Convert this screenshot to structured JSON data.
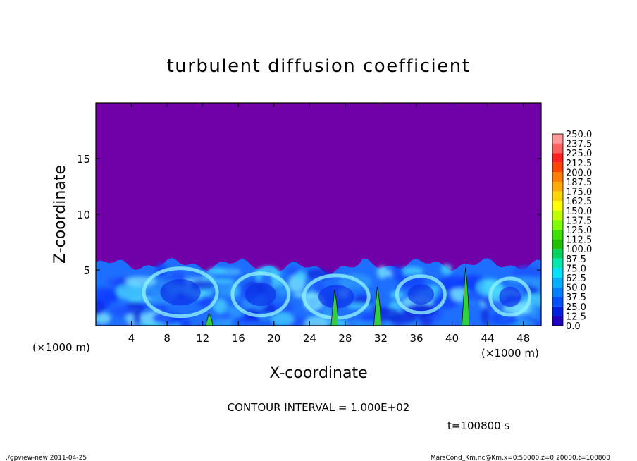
{
  "chart_data": {
    "type": "heatmap",
    "title": "turbulent diffusion coefficient",
    "xlabel": "X-coordinate",
    "ylabel": "Z-coordinate",
    "x_unit": "(×1000 m)",
    "y_unit": "(×1000 m)",
    "xlim": [
      0,
      50
    ],
    "ylim": [
      0,
      20
    ],
    "x_ticks": [
      4,
      8,
      12,
      16,
      20,
      24,
      28,
      32,
      36,
      40,
      44,
      48
    ],
    "y_ticks": [
      5,
      10,
      15
    ],
    "colorbar": {
      "levels": [
        "250.0",
        "237.5",
        "225.0",
        "212.5",
        "200.0",
        "187.5",
        "175.0",
        "162.5",
        "150.0",
        "137.5",
        "125.0",
        "112.5",
        "100.0",
        "87.5",
        "75.0",
        "62.5",
        "50.0",
        "37.5",
        "25.0",
        "12.5",
        "0.0"
      ],
      "colors": [
        "#ff9a9a",
        "#ff6060",
        "#ff2020",
        "#ff4500",
        "#ff7f00",
        "#ffaa00",
        "#ffd700",
        "#ffff00",
        "#c0ff00",
        "#80ff00",
        "#40e000",
        "#20c000",
        "#00d060",
        "#00e8b0",
        "#00e0ff",
        "#00b0ff",
        "#0080ff",
        "#0050ff",
        "#0020e0",
        "#2000c0",
        "#7000a8"
      ]
    },
    "background_color": "#7000a8",
    "contour_interval_text": "CONTOUR INTERVAL = 1.000E+02",
    "time_text": "t=100800 s",
    "boundary_layer_top_km": 5.5,
    "high_value_filaments": [
      {
        "x": 26.8,
        "z_top": 3.2,
        "value": 110
      },
      {
        "x": 41.5,
        "z_top": 5.2,
        "value": 115
      },
      {
        "x": 12.7,
        "z_top": 1.1,
        "value": 105
      },
      {
        "x": 31.6,
        "z_top": 3.5,
        "value": 100
      }
    ]
  },
  "footer": {
    "left": "./gpview-new   2011-04-25",
    "right": "MarsCond_Km.nc@Km,x=0:50000,z=0:20000,t=100800"
  }
}
